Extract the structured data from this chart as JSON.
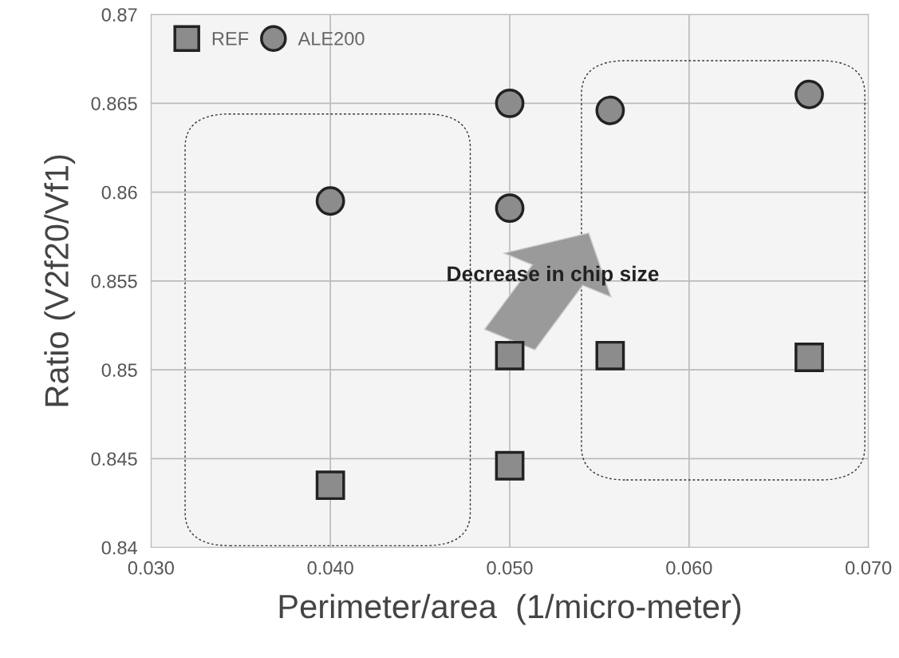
{
  "chart_data": {
    "type": "scatter",
    "xlabel": "Perimeter/area  (1/micro-meter)",
    "ylabel": "Ratio (V2f20/Vf1)",
    "xlim": [
      0.03,
      0.07
    ],
    "xticks": [
      {
        "value": 0.03,
        "label": "0.030"
      },
      {
        "value": 0.04,
        "label": "0.040"
      },
      {
        "value": 0.05,
        "label": "0.050"
      },
      {
        "value": 0.06,
        "label": "0.060"
      },
      {
        "value": 0.07,
        "label": "0.070"
      }
    ],
    "ylim": [
      0.84,
      0.87
    ],
    "yticks": [
      0.84,
      0.845,
      0.85,
      0.855,
      0.86,
      0.865,
      0.87
    ],
    "grid": true,
    "legend": "top left",
    "series": [
      {
        "name": "REF",
        "color": "#8c8c8c",
        "marker": "square",
        "x": [
          0.04,
          0.05,
          0.05,
          0.0556,
          0.0667
        ],
        "values": [
          0.8435,
          0.8446,
          0.8508,
          0.8508,
          0.8507
        ]
      },
      {
        "name": "ALE200",
        "color": "#8c8c8c",
        "marker": "circle",
        "x": [
          0.04,
          0.05,
          0.05,
          0.0556,
          0.0667
        ],
        "values": [
          0.8595,
          0.8591,
          0.865,
          0.8646,
          0.8655
        ]
      }
    ],
    "annotations": [
      "Decrease in chip size"
    ]
  }
}
